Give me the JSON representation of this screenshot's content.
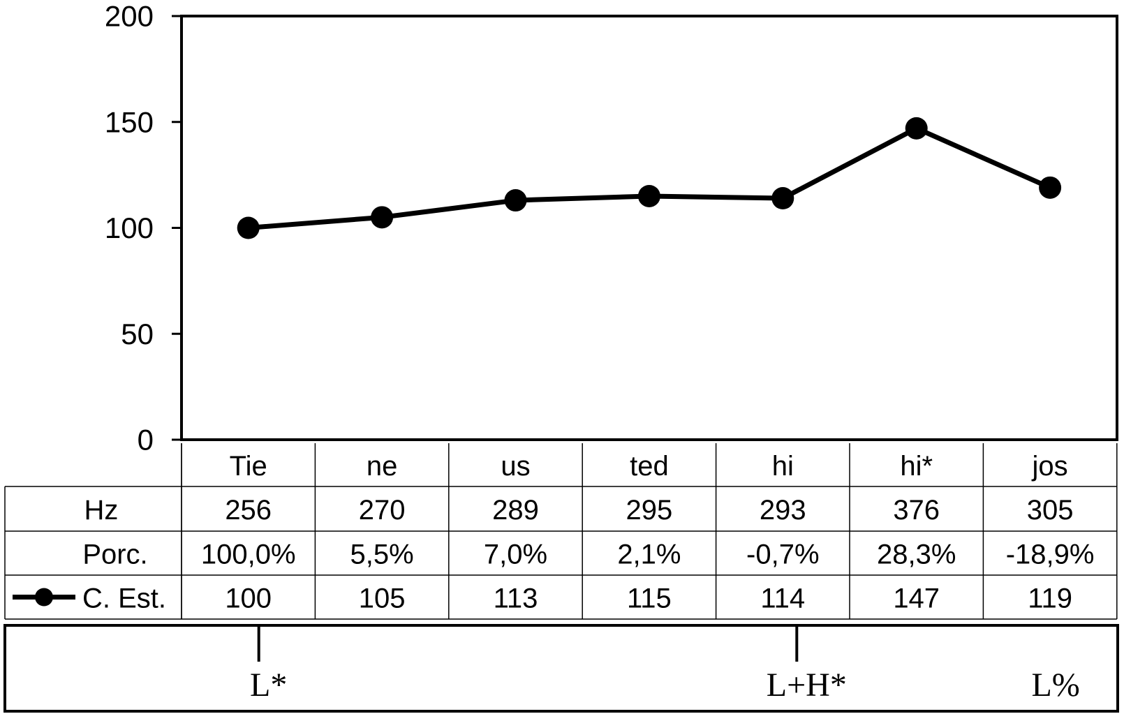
{
  "chart_data": {
    "type": "line",
    "title": "",
    "xlabel": "",
    "ylabel": "",
    "ylim": [
      0,
      200
    ],
    "yticks": [
      "0",
      "50",
      "100",
      "150",
      "200"
    ],
    "categories": [
      "Tie",
      "ne",
      "us",
      "ted",
      "hi",
      "hi*",
      "jos"
    ],
    "series": [
      {
        "name": "C. Est.",
        "values": [
          100,
          105,
          113,
          115,
          114,
          147,
          119
        ]
      }
    ],
    "grid": false,
    "colors": {
      "line": "#000000",
      "marker": "#000000"
    },
    "table": {
      "rows": [
        {
          "label": "Hz",
          "values": [
            "256",
            "270",
            "289",
            "295",
            "293",
            "376",
            "305"
          ]
        },
        {
          "label": "Porc.",
          "values": [
            "100,0%",
            "5,5%",
            "7,0%",
            "2,1%",
            "-0,7%",
            "28,3%",
            "-18,9%"
          ]
        },
        {
          "label": "C. Est.",
          "values": [
            "100",
            "105",
            "113",
            "115",
            "114",
            "147",
            "119"
          ]
        }
      ]
    },
    "tones": [
      {
        "label": "L*",
        "category": "Tie",
        "tick": true
      },
      {
        "label": "L+H*",
        "category": "hi",
        "tick": true
      },
      {
        "label": "L%",
        "category": "jos",
        "tick": false
      }
    ]
  }
}
